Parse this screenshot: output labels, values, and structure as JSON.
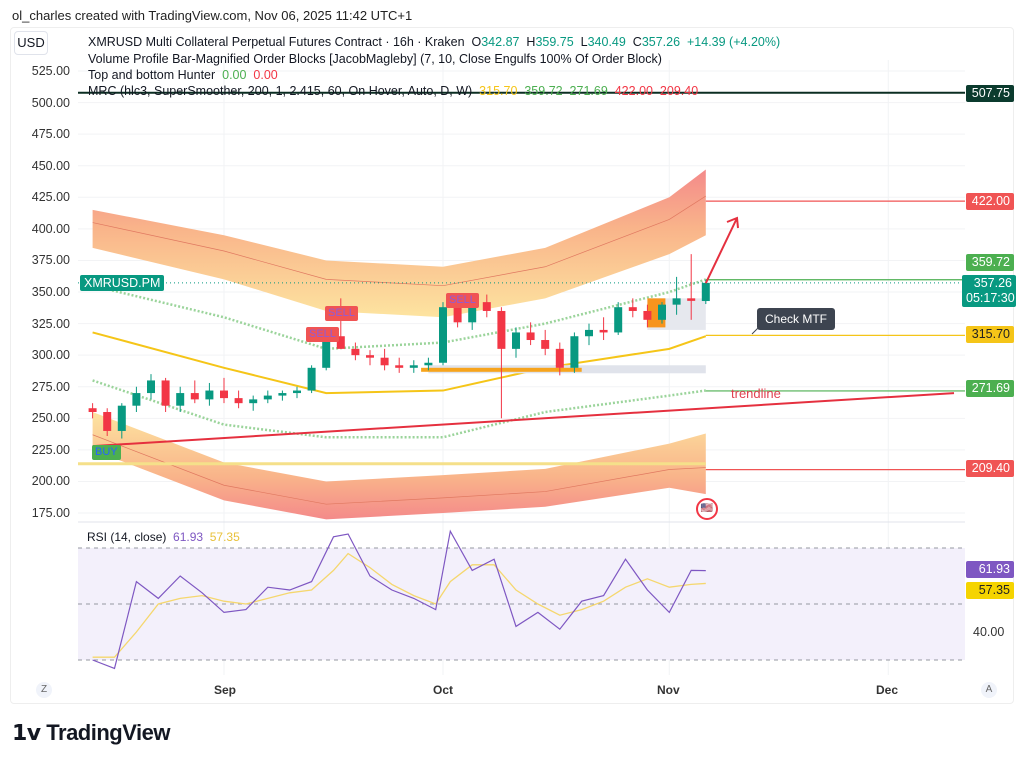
{
  "credit": "ol_charles created with TradingView.com, Nov 06, 2025 11:42 UTC+1",
  "currency": "USD",
  "legend": {
    "symbol": "XMRUSD Multi Collateral Perpetual Futures Contract · 16h · Kraken",
    "o_label": "O",
    "o": "342.87",
    "h_label": "H",
    "h": "359.75",
    "l_label": "L",
    "l": "340.49",
    "c_label": "C",
    "c": "357.26",
    "change": "+14.39 (+4.20%)",
    "ind1": "Volume Profile Bar-Magnified Order Blocks [JacobMagleby] (7, 10, Close Engulfs 100% Of Order Block)",
    "ind2": "Top and bottom Hunter",
    "ind2_v1": "0.00",
    "ind2_v2": "0.00",
    "ind3": "MRC (hlc3, SuperSmoother, 200, 1, 2.415, 60, On Hover, Auto, D, W)",
    "ind3_vals": [
      "315.70",
      "359.72",
      "271.69",
      "422.00",
      "209.40"
    ]
  },
  "price_axis": {
    "ticks": [
      "525.00",
      "500.00",
      "475.00",
      "450.00",
      "425.00",
      "400.00",
      "375.00",
      "350.00",
      "325.00",
      "300.00",
      "275.00",
      "250.00",
      "225.00",
      "200.00",
      "175.00"
    ]
  },
  "tags": {
    "black": "507.75",
    "red_hi": "422.00",
    "green_hi": "359.72",
    "last": "357.26",
    "countdown": "05:17:30",
    "yellow": "315.70",
    "green_lo": "271.69",
    "red_lo": "209.40",
    "symbol_label": "XMRUSD.PM"
  },
  "annotations": {
    "sell": "SELL",
    "buy": "BUY",
    "check": "Check MTF",
    "trendline": "trendline"
  },
  "rsi": {
    "label": "RSI (14, close)",
    "value": "61.93",
    "ma": "57.35",
    "tick": "40.00"
  },
  "x_axis": {
    "labels": [
      "Sep",
      "Oct",
      "Nov",
      "Dec"
    ],
    "left_btn": "Z",
    "right_btn": "A"
  },
  "brand": "TradingView",
  "colors": {
    "up": "#089981",
    "down": "#f23645",
    "mrc_mean": "#f5c518",
    "rsi": "#7e57c2",
    "rsi_ma": "#f5d76e"
  },
  "chart_data": {
    "type": "candlestick",
    "interval": "16h",
    "ylim": [
      175,
      525
    ],
    "candles": [
      [
        "2025-08-14",
        258,
        262,
        250,
        255
      ],
      [
        "2025-08-16",
        255,
        258,
        236,
        240
      ],
      [
        "2025-08-18",
        240,
        262,
        234,
        260
      ],
      [
        "2025-08-20",
        260,
        275,
        255,
        270
      ],
      [
        "2025-08-22",
        270,
        285,
        265,
        280
      ],
      [
        "2025-08-24",
        280,
        282,
        255,
        260
      ],
      [
        "2025-08-26",
        260,
        275,
        255,
        270
      ],
      [
        "2025-08-28",
        270,
        280,
        262,
        265
      ],
      [
        "2025-08-30",
        265,
        278,
        260,
        272
      ],
      [
        "2025-09-01",
        272,
        282,
        262,
        266
      ],
      [
        "2025-09-03",
        266,
        272,
        258,
        262
      ],
      [
        "2025-09-05",
        262,
        268,
        256,
        265
      ],
      [
        "2025-09-07",
        265,
        272,
        262,
        268
      ],
      [
        "2025-09-09",
        268,
        272,
        264,
        270
      ],
      [
        "2025-09-11",
        270,
        275,
        266,
        272
      ],
      [
        "2025-09-13",
        272,
        292,
        270,
        290
      ],
      [
        "2025-09-15",
        290,
        320,
        288,
        315
      ],
      [
        "2025-09-17",
        315,
        345,
        305,
        305
      ],
      [
        "2025-09-19",
        305,
        310,
        296,
        300
      ],
      [
        "2025-09-21",
        300,
        304,
        292,
        298
      ],
      [
        "2025-09-23",
        298,
        305,
        288,
        292
      ],
      [
        "2025-09-25",
        292,
        298,
        286,
        290
      ],
      [
        "2025-09-27",
        290,
        296,
        286,
        292
      ],
      [
        "2025-09-29",
        292,
        298,
        288,
        294
      ],
      [
        "2025-10-01",
        294,
        342,
        292,
        338
      ],
      [
        "2025-10-03",
        338,
        342,
        322,
        326
      ],
      [
        "2025-10-05",
        326,
        345,
        320,
        342
      ],
      [
        "2025-10-07",
        342,
        348,
        330,
        335
      ],
      [
        "2025-10-09",
        335,
        338,
        250,
        305
      ],
      [
        "2025-10-11",
        305,
        322,
        298,
        318
      ],
      [
        "2025-10-13",
        318,
        326,
        308,
        312
      ],
      [
        "2025-10-15",
        312,
        320,
        300,
        305
      ],
      [
        "2025-10-17",
        305,
        310,
        284,
        290
      ],
      [
        "2025-10-19",
        290,
        318,
        286,
        315
      ],
      [
        "2025-10-21",
        315,
        325,
        308,
        320
      ],
      [
        "2025-10-23",
        320,
        330,
        312,
        318
      ],
      [
        "2025-10-25",
        318,
        342,
        316,
        338
      ],
      [
        "2025-10-27",
        338,
        345,
        330,
        335
      ],
      [
        "2025-10-29",
        335,
        340,
        322,
        328
      ],
      [
        "2025-10-31",
        328,
        342,
        325,
        340
      ],
      [
        "2025-11-02",
        340,
        362,
        332,
        345
      ],
      [
        "2025-11-04",
        345,
        380,
        328,
        343
      ],
      [
        "2025-11-06",
        342.87,
        359.75,
        340.49,
        357.26
      ]
    ],
    "mrc": {
      "dates": [
        "2025-08-14",
        "2025-09-01",
        "2025-09-15",
        "2025-10-01",
        "2025-10-15",
        "2025-11-01",
        "2025-11-06"
      ],
      "upper_outer": [
        415,
        395,
        375,
        370,
        385,
        425,
        447
      ],
      "upper_inner": [
        385,
        360,
        335,
        330,
        345,
        380,
        395
      ],
      "upper_dotted": [
        355,
        330,
        305,
        310,
        325,
        350,
        360
      ],
      "mean": [
        318,
        290,
        270,
        272,
        290,
        305,
        315
      ],
      "lower_dotted": [
        280,
        245,
        235,
        235,
        255,
        268,
        272
      ],
      "lower_inner": [
        255,
        215,
        200,
        205,
        210,
        230,
        238
      ],
      "lower_outer": [
        225,
        185,
        170,
        175,
        180,
        195,
        190
      ]
    },
    "trendline": [
      [
        "2025-08-14",
        228
      ],
      [
        "2025-12-10",
        270
      ]
    ],
    "horizontal_levels": [
      507.75,
      422.0,
      359.72,
      315.7,
      271.69,
      209.4
    ],
    "rsi_series": {
      "dates": [
        "2025-08-14",
        "2025-08-17",
        "2025-08-20",
        "2025-08-23",
        "2025-08-26",
        "2025-08-29",
        "2025-09-01",
        "2025-09-04",
        "2025-09-07",
        "2025-09-10",
        "2025-09-13",
        "2025-09-16",
        "2025-09-18",
        "2025-09-21",
        "2025-09-24",
        "2025-09-27",
        "2025-09-30",
        "2025-10-02",
        "2025-10-05",
        "2025-10-08",
        "2025-10-11",
        "2025-10-14",
        "2025-10-17",
        "2025-10-20",
        "2025-10-23",
        "2025-10-26",
        "2025-10-29",
        "2025-11-01",
        "2025-11-04",
        "2025-11-06"
      ],
      "rsi": [
        30,
        27,
        58,
        52,
        60,
        54,
        47,
        48,
        56,
        55,
        58,
        74,
        75,
        60,
        55,
        52,
        48,
        76,
        62,
        66,
        42,
        47,
        41,
        51,
        53,
        66,
        55,
        47,
        62,
        61.93
      ],
      "ma": [
        31,
        31,
        40,
        50,
        52,
        53,
        51,
        50,
        52,
        54,
        55,
        62,
        68,
        63,
        57,
        53,
        50,
        58,
        64,
        64,
        55,
        50,
        46,
        48,
        51,
        56,
        59,
        56,
        57,
        57.35
      ],
      "levels": [
        70,
        50,
        30
      ]
    }
  }
}
